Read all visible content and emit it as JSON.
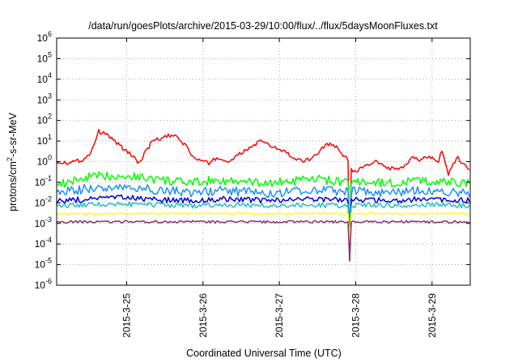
{
  "chart_data": {
    "type": "line",
    "title": "/data/run/goesPlots/archive/2015-03-29/10:00/flux/../flux/5daysMoonFluxes.txt",
    "xlabel": "Coordinated Universal Time (UTC)",
    "ylabel_parts": {
      "base": "protons/cm",
      "sup": "2",
      "rest": "-s-sr-MeV"
    },
    "yscale": "log",
    "ylim": [
      1e-06,
      1000000.0
    ],
    "xlim": [
      "2015-03-24T02:00",
      "2015-03-29T12:00"
    ],
    "grid": true,
    "yticks": [
      {
        "value": 1e-06,
        "base": "10",
        "exp": "-6"
      },
      {
        "value": 1e-05,
        "base": "10",
        "exp": "-5"
      },
      {
        "value": 0.0001,
        "base": "10",
        "exp": "-4"
      },
      {
        "value": 0.001,
        "base": "10",
        "exp": "-3"
      },
      {
        "value": 0.01,
        "base": "10",
        "exp": "-2"
      },
      {
        "value": 0.1,
        "base": "10",
        "exp": "-1"
      },
      {
        "value": 1,
        "base": "10",
        "exp": "0"
      },
      {
        "value": 10,
        "base": "10",
        "exp": "1"
      },
      {
        "value": 100,
        "base": "10",
        "exp": "2"
      },
      {
        "value": 1000,
        "base": "10",
        "exp": "3"
      },
      {
        "value": 10000,
        "base": "10",
        "exp": "4"
      },
      {
        "value": 100000,
        "base": "10",
        "exp": "5"
      },
      {
        "value": 1000000,
        "base": "10",
        "exp": "6"
      }
    ],
    "xticks": [
      {
        "value": "2015-03-25T00:00",
        "label": "2015-3-25"
      },
      {
        "value": "2015-03-26T00:00",
        "label": "2015-3-26"
      },
      {
        "value": "2015-03-27T00:00",
        "label": "2015-3-27"
      },
      {
        "value": "2015-03-28T00:00",
        "label": "2015-3-28"
      },
      {
        "value": "2015-03-29T00:00",
        "label": "2015-3-29"
      }
    ],
    "series": [
      {
        "color": "#ff0000",
        "x": [
          "2015-03-24T02:00",
          "2015-03-24T06:00",
          "2015-03-24T10:00",
          "2015-03-24T12:00",
          "2015-03-24T14:00",
          "2015-03-24T15:00",
          "2015-03-24T18:00",
          "2015-03-24T21:00",
          "2015-03-25T00:00",
          "2015-03-25T02:00",
          "2015-03-25T04:00",
          "2015-03-25T06:00",
          "2015-03-25T08:00",
          "2015-03-25T10:00",
          "2015-03-25T13:00",
          "2015-03-25T16:00",
          "2015-03-25T19:00",
          "2015-03-25T21:00",
          "2015-03-26T00:00",
          "2015-03-26T02:00",
          "2015-03-26T04:00",
          "2015-03-26T08:00",
          "2015-03-26T11:00",
          "2015-03-26T14:00",
          "2015-03-26T18:00",
          "2015-03-26T22:00",
          "2015-03-27T02:00",
          "2015-03-27T05:00",
          "2015-03-27T08:00",
          "2015-03-27T12:00",
          "2015-03-27T15:00",
          "2015-03-27T18:00",
          "2015-03-27T21:00",
          "2015-03-27T23:00",
          "2015-03-28T02:00",
          "2015-03-28T06:00",
          "2015-03-28T10:00",
          "2015-03-28T14:00",
          "2015-03-28T18:00",
          "2015-03-28T20:00",
          "2015-03-28T23:00",
          "2015-03-29T02:00",
          "2015-03-29T03:00",
          "2015-03-29T05:00",
          "2015-03-29T08:00",
          "2015-03-29T10:00",
          "2015-03-29T12:00"
        ],
        "y": [
          1.0,
          0.9,
          1.2,
          2.0,
          8.0,
          30.0,
          20.0,
          8.0,
          3.0,
          2.0,
          0.8,
          3.0,
          10.0,
          12.0,
          18.0,
          15.0,
          5.0,
          1.5,
          1.0,
          0.8,
          1.5,
          1.0,
          2.0,
          4.0,
          10.0,
          5.0,
          3.0,
          1.2,
          1.0,
          2.5,
          8.0,
          5.0,
          1.5,
          0.3,
          0.5,
          1.0,
          0.5,
          0.4,
          1.5,
          1.2,
          2.0,
          1.0,
          4.0,
          0.25,
          1.5,
          0.8,
          0.4
        ]
      },
      {
        "color": "#00ff00",
        "x": [
          "2015-03-24T02:00",
          "2015-03-24T12:00",
          "2015-03-24T21:00",
          "2015-03-25T04:00",
          "2015-03-25T12:00",
          "2015-03-25T20:00",
          "2015-03-26T04:00",
          "2015-03-26T12:00",
          "2015-03-26T20:00",
          "2015-03-27T04:00",
          "2015-03-27T12:00",
          "2015-03-27T20:00",
          "2015-03-28T04:00",
          "2015-03-28T12:00",
          "2015-03-28T20:00",
          "2015-03-29T04:00",
          "2015-03-29T12:00"
        ],
        "y": [
          0.07,
          0.18,
          0.22,
          0.18,
          0.12,
          0.09,
          0.13,
          0.1,
          0.09,
          0.11,
          0.14,
          0.1,
          0.1,
          0.09,
          0.12,
          0.1,
          0.09
        ]
      },
      {
        "color": "#1e90ff",
        "x": [
          "2015-03-24T02:00",
          "2015-03-24T12:00",
          "2015-03-24T21:00",
          "2015-03-25T04:00",
          "2015-03-25T12:00",
          "2015-03-25T20:00",
          "2015-03-26T04:00",
          "2015-03-26T12:00",
          "2015-03-26T20:00",
          "2015-03-27T04:00",
          "2015-03-27T12:00",
          "2015-03-27T20:00",
          "2015-03-28T04:00",
          "2015-03-28T12:00",
          "2015-03-28T20:00",
          "2015-03-29T04:00",
          "2015-03-29T12:00"
        ],
        "y": [
          0.03,
          0.05,
          0.06,
          0.05,
          0.04,
          0.03,
          0.04,
          0.035,
          0.03,
          0.035,
          0.045,
          0.035,
          0.035,
          0.03,
          0.04,
          0.035,
          0.03
        ]
      },
      {
        "color": "#0000dd",
        "x": [
          "2015-03-24T02:00",
          "2015-03-24T12:00",
          "2015-03-24T21:00",
          "2015-03-25T04:00",
          "2015-03-25T12:00",
          "2015-03-25T20:00",
          "2015-03-26T04:00",
          "2015-03-26T12:00",
          "2015-03-26T20:00",
          "2015-03-27T04:00",
          "2015-03-27T12:00",
          "2015-03-27T20:00",
          "2015-03-28T04:00",
          "2015-03-28T12:00",
          "2015-03-28T20:00",
          "2015-03-29T04:00",
          "2015-03-29T12:00"
        ],
        "y": [
          0.012,
          0.015,
          0.018,
          0.016,
          0.014,
          0.013,
          0.015,
          0.014,
          0.013,
          0.014,
          0.016,
          0.013,
          0.014,
          0.013,
          0.015,
          0.014,
          0.013
        ]
      },
      {
        "color": "#20c0c0",
        "x": [
          "2015-03-24T02:00",
          "2015-03-24T12:00",
          "2015-03-24T21:00",
          "2015-03-25T04:00",
          "2015-03-25T12:00",
          "2015-03-25T20:00",
          "2015-03-26T04:00",
          "2015-03-26T12:00",
          "2015-03-26T20:00",
          "2015-03-27T04:00",
          "2015-03-27T12:00",
          "2015-03-27T20:00",
          "2015-03-28T04:00",
          "2015-03-28T12:00",
          "2015-03-28T20:00",
          "2015-03-29T04:00",
          "2015-03-29T12:00"
        ],
        "y": [
          0.007,
          0.008,
          0.009,
          0.008,
          0.008,
          0.007,
          0.008,
          0.008,
          0.007,
          0.008,
          0.008,
          0.007,
          0.008,
          0.007,
          0.008,
          0.008,
          0.007
        ]
      },
      {
        "color": "#ffff00",
        "x": [
          "2015-03-24T02:00",
          "2015-03-24T21:00",
          "2015-03-25T12:00",
          "2015-03-26T04:00",
          "2015-03-26T20:00",
          "2015-03-27T12:00",
          "2015-03-28T04:00",
          "2015-03-28T20:00",
          "2015-03-29T12:00"
        ],
        "y": [
          0.003,
          0.003,
          0.003,
          0.003,
          0.003,
          0.003,
          0.003,
          0.003,
          0.003
        ]
      },
      {
        "color": "#8b2a6b",
        "x": [
          "2015-03-24T02:00",
          "2015-03-24T21:00",
          "2015-03-25T12:00",
          "2015-03-26T04:00",
          "2015-03-26T20:00",
          "2015-03-27T12:00",
          "2015-03-28T04:00",
          "2015-03-28T20:00",
          "2015-03-29T12:00"
        ],
        "y": [
          0.0012,
          0.0012,
          0.0012,
          0.0012,
          0.0012,
          0.0012,
          0.0012,
          0.0012,
          0.0012
        ]
      }
    ],
    "spike": {
      "x": "2015-03-27T22:00",
      "min_y": [
        1.5e-05,
        0.00015,
        8e-05,
        0.0001,
        0.00012,
        0.0002,
        1.5e-05
      ],
      "colors": [
        "#8b2a6b",
        "#ffff00",
        "#20c0c0",
        "#0000dd",
        "#1e90ff",
        "#00ff00",
        "#ff0000"
      ]
    }
  }
}
